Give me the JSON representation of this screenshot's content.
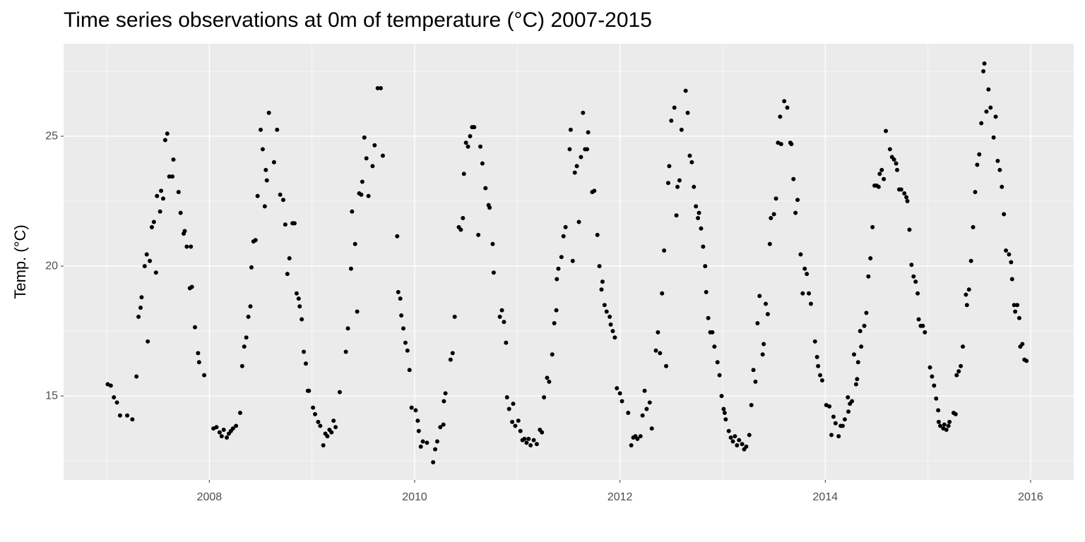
{
  "chart_data": {
    "type": "scatter",
    "title": "Time series observations at 0m of temperature (°C) 2007-2015",
    "y_label": "Temp. (°C)",
    "color": "#000000",
    "grid": true,
    "xlim": [
      2006.58,
      2016.42
    ],
    "ylim": [
      11.77,
      28.56
    ],
    "xticks": [
      2008,
      2010,
      2012,
      2014,
      2016
    ],
    "yticks": [
      15,
      20,
      25
    ],
    "x": [
      2007.01,
      2007.04,
      2007.07,
      2007.1,
      2007.13,
      2007.2,
      2007.25,
      2007.29,
      2007.31,
      2007.33,
      2007.34,
      2007.37,
      2007.39,
      2007.4,
      2007.42,
      2007.44,
      2007.46,
      2007.48,
      2007.49,
      2007.52,
      2007.53,
      2007.55,
      2007.57,
      2007.59,
      2007.61,
      2007.64,
      2007.65,
      2007.7,
      2007.72,
      2007.75,
      2007.76,
      2007.78,
      2007.81,
      2007.82,
      2007.83,
      2007.86,
      2007.89,
      2007.9,
      2007.95,
      2008.04,
      2008.07,
      2008.1,
      2008.12,
      2008.14,
      2008.17,
      2008.19,
      2008.21,
      2008.23,
      2008.26,
      2008.3,
      2008.32,
      2008.34,
      2008.36,
      2008.38,
      2008.4,
      2008.41,
      2008.43,
      2008.45,
      2008.47,
      2008.5,
      2008.52,
      2008.54,
      2008.55,
      2008.56,
      2008.58,
      2008.63,
      2008.66,
      2008.69,
      2008.72,
      2008.74,
      2008.76,
      2008.78,
      2008.81,
      2008.83,
      2008.85,
      2008.87,
      2008.88,
      2008.9,
      2008.92,
      2008.94,
      2008.96,
      2008.97,
      2009.01,
      2009.03,
      2009.06,
      2009.08,
      2009.11,
      2009.13,
      2009.15,
      2009.17,
      2009.19,
      2009.21,
      2009.23,
      2009.27,
      2009.33,
      2009.35,
      2009.38,
      2009.39,
      2009.42,
      2009.44,
      2009.46,
      2009.48,
      2009.49,
      2009.51,
      2009.53,
      2009.55,
      2009.59,
      2009.61,
      2009.64,
      2009.67,
      2009.69,
      2009.83,
      2009.84,
      2009.86,
      2009.87,
      2009.89,
      2009.91,
      2009.93,
      2009.95,
      2009.97,
      2010.01,
      2010.03,
      2010.04,
      2010.06,
      2010.08,
      2010.12,
      2010.18,
      2010.2,
      2010.22,
      2010.25,
      2010.28,
      2010.285,
      2010.3,
      2010.35,
      2010.37,
      2010.39,
      2010.43,
      2010.45,
      2010.47,
      2010.48,
      2010.5,
      2010.52,
      2010.54,
      2010.56,
      2010.58,
      2010.62,
      2010.64,
      2010.66,
      2010.69,
      2010.72,
      2010.73,
      2010.76,
      2010.77,
      2010.83,
      2010.85,
      2010.87,
      2010.89,
      2010.9,
      2010.92,
      2010.95,
      2010.96,
      2010.98,
      2011.01,
      2011.03,
      2011.05,
      2011.07,
      2011.09,
      2011.11,
      2011.13,
      2011.16,
      2011.19,
      2011.22,
      2011.24,
      2011.26,
      2011.29,
      2011.31,
      2011.34,
      2011.36,
      2011.38,
      2011.385,
      2011.4,
      2011.43,
      2011.45,
      2011.47,
      2011.51,
      2011.52,
      2011.54,
      2011.56,
      2011.58,
      2011.6,
      2011.62,
      2011.64,
      2011.66,
      2011.68,
      2011.69,
      2011.73,
      2011.75,
      2011.78,
      2011.8,
      2011.82,
      2011.83,
      2011.85,
      2011.87,
      2011.9,
      2011.91,
      2011.93,
      2011.95,
      2011.97,
      2012.0,
      2012.02,
      2012.08,
      2012.11,
      2012.13,
      2012.15,
      2012.17,
      2012.2,
      2012.22,
      2012.24,
      2012.26,
      2012.29,
      2012.31,
      2012.35,
      2012.37,
      2012.39,
      2012.41,
      2012.43,
      2012.45,
      2012.47,
      2012.48,
      2012.5,
      2012.53,
      2012.55,
      2012.56,
      2012.58,
      2012.6,
      2012.64,
      2012.66,
      2012.68,
      2012.7,
      2012.72,
      2012.74,
      2012.76,
      2012.77,
      2012.79,
      2012.81,
      2012.83,
      2012.84,
      2012.86,
      2012.88,
      2012.9,
      2012.92,
      2012.95,
      2012.97,
      2012.99,
      2013.01,
      2013.02,
      2013.03,
      2013.06,
      2013.08,
      2013.1,
      2013.12,
      2013.14,
      2013.16,
      2013.19,
      2013.21,
      2013.23,
      2013.26,
      2013.28,
      2013.3,
      2013.32,
      2013.34,
      2013.36,
      2013.39,
      2013.4,
      2013.42,
      2013.44,
      2013.46,
      2013.47,
      2013.5,
      2013.52,
      2013.54,
      2013.56,
      2013.57,
      2013.6,
      2013.63,
      2013.66,
      2013.67,
      2013.69,
      2013.71,
      2013.73,
      2013.76,
      2013.78,
      2013.8,
      2013.82,
      2013.84,
      2013.86,
      2013.9,
      2013.92,
      2013.93,
      2013.95,
      2013.97,
      2014.01,
      2014.04,
      2014.06,
      2014.08,
      2014.1,
      2014.13,
      2014.15,
      2014.17,
      2014.19,
      2014.22,
      2014.225,
      2014.24,
      2014.26,
      2014.28,
      2014.3,
      2014.31,
      2014.32,
      2014.34,
      2014.35,
      2014.38,
      2014.4,
      2014.42,
      2014.44,
      2014.46,
      2014.48,
      2014.5,
      2014.52,
      2014.53,
      2014.55,
      2014.57,
      2014.59,
      2014.63,
      2014.65,
      2014.67,
      2014.69,
      2014.7,
      2014.72,
      2014.74,
      2014.77,
      2014.79,
      2014.8,
      2014.82,
      2014.84,
      2014.86,
      2014.88,
      2014.9,
      2014.91,
      2014.93,
      2014.95,
      2014.97,
      2015.02,
      2015.04,
      2015.06,
      2015.08,
      2015.1,
      2015.105,
      2015.12,
      2015.15,
      2015.16,
      2015.18,
      2015.2,
      2015.21,
      2015.25,
      2015.27,
      2015.28,
      2015.3,
      2015.32,
      2015.34,
      2015.37,
      2015.38,
      2015.4,
      2015.42,
      2015.44,
      2015.46,
      2015.48,
      2015.5,
      2015.52,
      2015.54,
      2015.55,
      2015.57,
      2015.59,
      2015.61,
      2015.64,
      2015.66,
      2015.68,
      2015.7,
      2015.72,
      2015.74,
      2015.76,
      2015.79,
      2015.81,
      2015.82,
      2015.84,
      2015.85,
      2015.87,
      2015.89,
      2015.9,
      2015.92,
      2015.94,
      2015.96
    ],
    "values": [
      15.45,
      15.4,
      14.95,
      14.75,
      14.25,
      14.25,
      14.1,
      15.75,
      18.05,
      18.4,
      18.8,
      20.0,
      20.45,
      17.1,
      20.2,
      21.5,
      21.7,
      19.75,
      22.7,
      22.1,
      22.9,
      22.6,
      24.85,
      25.1,
      23.45,
      23.45,
      24.1,
      22.85,
      22.05,
      21.25,
      21.35,
      20.75,
      19.15,
      20.75,
      19.2,
      17.65,
      16.65,
      16.3,
      15.8,
      13.75,
      13.8,
      13.6,
      13.45,
      13.7,
      13.4,
      13.55,
      13.65,
      13.75,
      13.85,
      14.35,
      16.15,
      16.9,
      17.25,
      18.05,
      18.45,
      19.95,
      20.95,
      21.0,
      22.7,
      25.25,
      24.5,
      22.3,
      23.7,
      23.3,
      25.9,
      24.0,
      25.25,
      22.75,
      22.55,
      21.6,
      19.7,
      20.3,
      21.65,
      21.65,
      18.95,
      18.75,
      18.45,
      17.95,
      16.7,
      16.25,
      15.2,
      15.2,
      14.55,
      14.3,
      14.0,
      13.85,
      13.1,
      13.55,
      13.45,
      13.7,
      13.6,
      14.05,
      13.8,
      15.15,
      16.7,
      17.6,
      19.9,
      22.1,
      20.85,
      18.25,
      22.8,
      22.75,
      23.25,
      24.95,
      24.15,
      22.7,
      23.85,
      24.65,
      26.85,
      26.85,
      24.25,
      21.15,
      19.0,
      18.75,
      18.1,
      17.6,
      17.05,
      16.75,
      16.0,
      14.55,
      14.45,
      14.05,
      13.65,
      13.05,
      13.25,
      13.2,
      12.45,
      12.95,
      13.25,
      13.8,
      13.9,
      14.8,
      15.1,
      16.4,
      16.65,
      18.05,
      21.5,
      21.4,
      21.85,
      23.55,
      24.75,
      24.6,
      25.0,
      25.35,
      25.35,
      21.2,
      24.6,
      23.95,
      23.0,
      22.35,
      22.25,
      20.85,
      19.75,
      18.05,
      18.3,
      17.85,
      17.05,
      14.95,
      14.5,
      14.0,
      14.7,
      13.85,
      14.05,
      13.65,
      13.3,
      13.35,
      13.2,
      13.35,
      13.1,
      13.3,
      13.15,
      13.7,
      13.6,
      14.95,
      15.7,
      15.55,
      16.6,
      17.8,
      18.3,
      19.5,
      19.9,
      20.35,
      21.15,
      21.5,
      24.5,
      25.25,
      20.2,
      23.6,
      23.85,
      21.7,
      24.2,
      25.9,
      24.5,
      24.5,
      25.15,
      22.85,
      22.9,
      21.2,
      20.0,
      19.1,
      19.4,
      18.5,
      18.25,
      18.05,
      17.75,
      17.5,
      17.25,
      15.3,
      15.1,
      14.8,
      14.35,
      13.1,
      13.4,
      13.45,
      13.35,
      13.45,
      14.25,
      15.2,
      14.5,
      14.75,
      13.75,
      16.75,
      17.45,
      16.65,
      18.95,
      20.6,
      16.15,
      23.2,
      23.85,
      25.6,
      26.1,
      21.95,
      23.05,
      23.3,
      25.25,
      26.75,
      25.9,
      24.25,
      24.0,
      23.05,
      22.3,
      21.85,
      22.05,
      21.45,
      20.75,
      20.0,
      19.0,
      18.0,
      17.45,
      17.45,
      16.9,
      16.3,
      15.8,
      15.0,
      14.5,
      14.35,
      14.1,
      13.65,
      13.4,
      13.25,
      13.45,
      13.1,
      13.3,
      13.15,
      12.95,
      13.05,
      13.5,
      14.65,
      16.0,
      15.55,
      17.8,
      18.85,
      16.6,
      17.0,
      18.55,
      18.15,
      20.85,
      21.85,
      22.0,
      22.6,
      24.75,
      25.75,
      24.7,
      26.35,
      26.1,
      24.75,
      24.7,
      23.35,
      22.05,
      22.55,
      20.45,
      18.95,
      19.9,
      19.7,
      18.95,
      18.55,
      17.1,
      16.5,
      16.15,
      15.8,
      15.6,
      14.65,
      14.6,
      13.5,
      14.2,
      13.95,
      13.45,
      13.85,
      13.85,
      14.1,
      14.95,
      14.4,
      14.7,
      14.8,
      16.6,
      15.45,
      15.65,
      16.3,
      17.5,
      16.9,
      17.7,
      18.2,
      19.6,
      20.3,
      21.5,
      23.1,
      23.1,
      23.05,
      23.55,
      23.7,
      23.35,
      25.2,
      24.5,
      24.2,
      24.1,
      23.95,
      23.7,
      22.95,
      22.95,
      22.8,
      22.65,
      22.5,
      21.4,
      20.05,
      19.6,
      19.4,
      18.95,
      17.95,
      17.7,
      17.7,
      17.45,
      16.1,
      15.75,
      15.4,
      14.9,
      14.45,
      14.0,
      13.85,
      13.75,
      13.9,
      13.7,
      13.85,
      14.0,
      14.35,
      14.3,
      15.8,
      15.95,
      16.15,
      16.9,
      18.9,
      18.5,
      19.1,
      20.2,
      21.5,
      22.85,
      23.9,
      24.3,
      25.5,
      27.5,
      27.8,
      25.95,
      26.8,
      26.1,
      24.95,
      25.75,
      24.05,
      23.7,
      23.05,
      22.0,
      20.6,
      20.45,
      20.15,
      19.5,
      18.5,
      18.25,
      18.5,
      18.0,
      16.9,
      17.0,
      16.4,
      16.35
    ]
  }
}
